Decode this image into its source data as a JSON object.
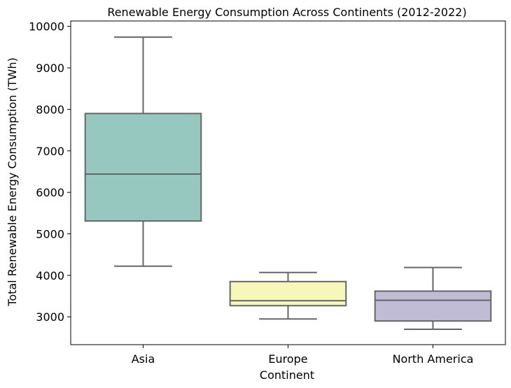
{
  "chart_data": {
    "type": "box",
    "title": "Renewable Energy Consumption Across Continents (2012-2022)",
    "xlabel": "Continent",
    "ylabel": "Total Renewable Energy Consumption (TWh)",
    "ylim": [
      2330,
      10130
    ],
    "yticks": [
      3000,
      4000,
      5000,
      6000,
      7000,
      8000,
      9000,
      10000
    ],
    "categories": [
      "Asia",
      "Europe",
      "North America"
    ],
    "boxes": [
      {
        "category": "Asia",
        "whisker_low": 4220,
        "q1": 5310,
        "median": 6440,
        "q3": 7900,
        "whisker_high": 9740,
        "color": "#96c8c0"
      },
      {
        "category": "Europe",
        "whisker_low": 2950,
        "q1": 3270,
        "median": 3390,
        "q3": 3850,
        "whisker_high": 4070,
        "color": "#f7f7ba"
      },
      {
        "category": "North America",
        "whisker_low": 2700,
        "q1": 2900,
        "median": 3400,
        "q3": 3620,
        "whisker_high": 4190,
        "color": "#c0bcd6"
      }
    ],
    "line_color": "#666666",
    "grid": false,
    "legend": "none"
  }
}
